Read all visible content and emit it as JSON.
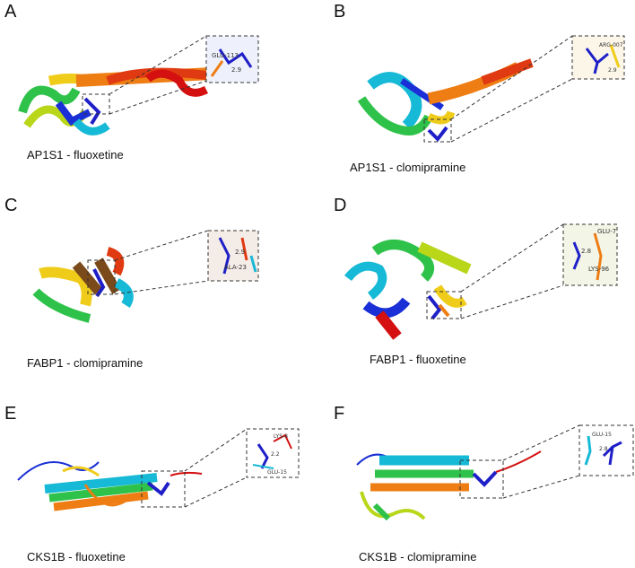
{
  "panels": [
    {
      "letter": "A",
      "caption": "AP1S1 - fluoxetine",
      "inset_labels": [
        "GLU-113",
        "2.9"
      ]
    },
    {
      "letter": "B",
      "caption": "AP1S1 - clomipramine",
      "inset_labels": [
        "ARG-007",
        "2.9"
      ]
    },
    {
      "letter": "C",
      "caption": "FABP1 - clomipramine",
      "inset_labels": [
        "ALA-23",
        "2.9"
      ]
    },
    {
      "letter": "D",
      "caption": "FABP1 - fluoxetine",
      "inset_labels": [
        "GLU-7",
        "2.8",
        "LYS-96"
      ]
    },
    {
      "letter": "E",
      "caption": "CKS1B - fluoxetine",
      "inset_labels": [
        "LYS-8",
        "2.2",
        "GLU-15"
      ]
    },
    {
      "letter": "F",
      "caption": "CKS1B - clomipramine",
      "inset_labels": [
        "GLU-15",
        "2.8"
      ]
    }
  ],
  "colors": {
    "ligand": "#1f1fc8",
    "rainbow": [
      "#1a2fd6",
      "#16b9d6",
      "#2fc24a",
      "#b9d619",
      "#f0cc1a",
      "#ee7d14",
      "#e03a12",
      "#d41010"
    ],
    "dash": "#333333"
  }
}
